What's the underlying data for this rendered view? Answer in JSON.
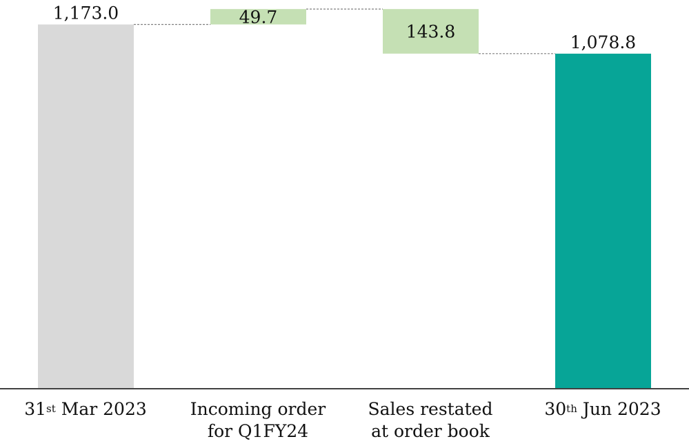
{
  "chart_data": {
    "type": "waterfall",
    "ylim": [
      0,
      1300
    ],
    "bars": [
      {
        "kind": "total",
        "value": 1173.0,
        "label": "1,173.0",
        "color": "#d9d9d9"
      },
      {
        "kind": "delta",
        "value": 49.7,
        "label": "49.7",
        "color": "#c5e0b4"
      },
      {
        "kind": "delta",
        "value": -143.8,
        "label": "143.8",
        "color": "#c5e0b4"
      },
      {
        "kind": "total",
        "value": 1078.8,
        "label": "1,078.8",
        "color": "#07a597"
      }
    ],
    "categories": [
      {
        "num": "31",
        "sup": "st",
        "rest": " Mar 2023",
        "line2": ""
      },
      {
        "num": "",
        "sup": "",
        "rest": "Incoming order",
        "line2": "for Q1FY24"
      },
      {
        "num": "",
        "sup": "",
        "rest": "Sales restated",
        "line2": "at order book"
      },
      {
        "num": "30",
        "sup": "th",
        "rest": " Jun 2023",
        "line2": ""
      }
    ],
    "connector_color": "#7f7f7f",
    "axis_color": "#404040"
  }
}
